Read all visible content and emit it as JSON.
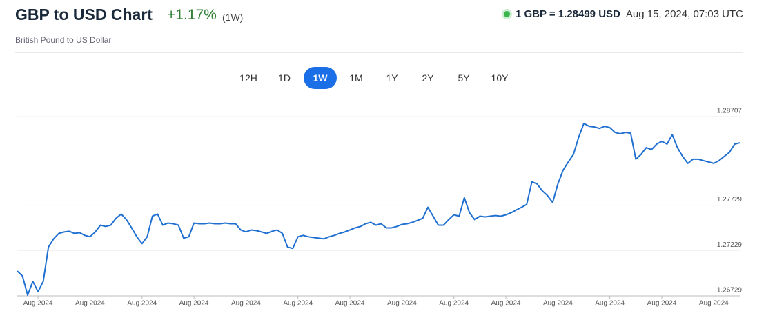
{
  "header": {
    "title": "GBP to USD Chart",
    "change": "+1.17%",
    "period": "(1W)",
    "subtitle": "British Pound to US Dollar",
    "rate": "1 GBP = 1.28499 USD",
    "timestamp": "Aug 15, 2024, 07:03 UTC"
  },
  "range_buttons": [
    "12H",
    "1D",
    "1W",
    "1M",
    "1Y",
    "2Y",
    "5Y",
    "10Y"
  ],
  "active_range": "1W",
  "chart_data": {
    "type": "line",
    "color": "#1f6fd1",
    "grid": true,
    "categories": [
      null,
      null,
      null,
      null,
      "Aug 2024",
      null,
      null,
      null,
      null,
      null,
      null,
      null,
      null,
      null,
      "Aug 2024",
      null,
      null,
      null,
      null,
      null,
      null,
      null,
      null,
      null,
      "Aug 2024",
      null,
      null,
      null,
      null,
      null,
      null,
      null,
      null,
      null,
      "Aug 2024",
      null,
      null,
      null,
      null,
      null,
      null,
      null,
      null,
      null,
      "Aug 2024",
      null,
      null,
      null,
      null,
      null,
      null,
      null,
      null,
      null,
      "Aug 2024",
      null,
      null,
      null,
      null,
      null,
      null,
      null,
      null,
      null,
      "Aug 2024",
      null,
      null,
      null,
      null,
      null,
      null,
      null,
      null,
      null,
      "Aug 2024",
      null,
      null,
      null,
      null,
      null,
      null,
      null,
      null,
      null,
      "Aug 2024",
      null,
      null,
      null,
      null,
      null,
      null,
      null,
      null,
      null,
      "Aug 2024",
      null,
      null,
      null,
      null,
      null,
      null,
      null,
      null,
      null,
      "Aug 2024",
      null,
      null,
      null,
      null,
      null,
      null,
      null,
      null,
      null,
      "Aug 2024",
      null,
      null,
      null,
      null,
      null,
      null,
      null,
      null,
      null,
      "Aug 2024",
      null,
      null,
      null,
      null,
      null,
      null,
      null,
      null,
      null,
      "Aug 2024",
      null,
      null,
      null,
      null,
      null
    ],
    "values": [
      1.27002,
      1.26949,
      1.26737,
      1.26888,
      1.26774,
      1.26888,
      1.27267,
      1.27358,
      1.27418,
      1.27434,
      1.27441,
      1.27418,
      1.27426,
      1.27396,
      1.27381,
      1.27434,
      1.27509,
      1.27494,
      1.27509,
      1.27585,
      1.27631,
      1.2757,
      1.27479,
      1.27381,
      1.27305,
      1.27381,
      1.27608,
      1.27631,
      1.27509,
      1.27532,
      1.27524,
      1.27509,
      1.27365,
      1.27381,
      1.27532,
      1.27524,
      1.27524,
      1.27532,
      1.27524,
      1.27524,
      1.27532,
      1.27524,
      1.27524,
      1.27456,
      1.27434,
      1.27456,
      1.27449,
      1.27434,
      1.27418,
      1.27441,
      1.27456,
      1.27418,
      1.27267,
      1.27252,
      1.27381,
      1.27396,
      1.27381,
      1.27373,
      1.27365,
      1.27358,
      1.27381,
      1.27396,
      1.27418,
      1.27434,
      1.27456,
      1.27479,
      1.27494,
      1.27524,
      1.2754,
      1.27509,
      1.27524,
      1.27479,
      1.27479,
      1.27494,
      1.27517,
      1.27524,
      1.2754,
      1.27562,
      1.27585,
      1.27706,
      1.27608,
      1.27509,
      1.27509,
      1.2757,
      1.27623,
      1.27608,
      1.27812,
      1.27646,
      1.2757,
      1.27608,
      1.276,
      1.27608,
      1.27615,
      1.27608,
      1.27623,
      1.27646,
      1.27676,
      1.27706,
      1.27737,
      1.27987,
      1.27964,
      1.27888,
      1.27835,
      1.27759,
      1.27964,
      1.28115,
      1.28206,
      1.2829,
      1.28479,
      1.28631,
      1.286,
      1.28593,
      1.28577,
      1.286,
      1.28585,
      1.28532,
      1.28517,
      1.28532,
      1.28524,
      1.28237,
      1.2829,
      1.28365,
      1.28343,
      1.28403,
      1.28434,
      1.28403,
      1.28509,
      1.28365,
      1.28267,
      1.28191,
      1.28237,
      1.28237,
      1.28221,
      1.28206,
      1.28191,
      1.28221,
      1.28267,
      1.28312,
      1.28403,
      1.28418
    ],
    "ylim": [
      1.26729,
      1.28852
    ],
    "yticks": [
      1.26729,
      1.27229,
      1.27729,
      1.28707
    ]
  }
}
